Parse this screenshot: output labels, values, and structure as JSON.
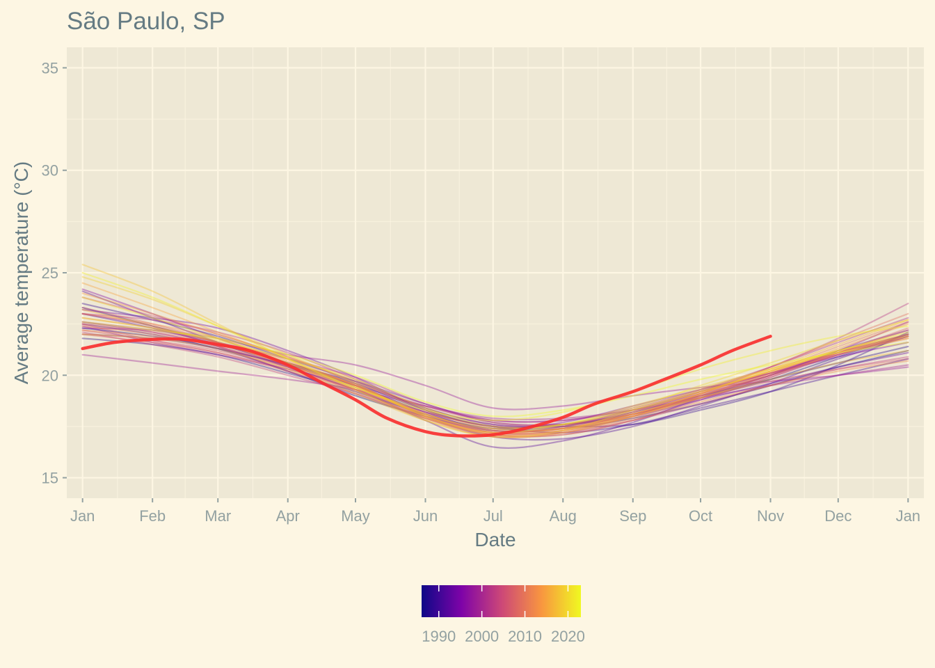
{
  "chart_data": {
    "type": "line",
    "title": "São Paulo, SP",
    "xlabel": "Date",
    "ylabel": "Average temperature (°C)",
    "ylim": [
      14,
      36
    ],
    "yticks": [
      15,
      20,
      25,
      30,
      35
    ],
    "xlim": [
      "2023-12-25",
      "2025-01-08"
    ],
    "xticks": [
      {
        "label": "Jan",
        "date": "2024-01-01"
      },
      {
        "label": "Feb",
        "date": "2024-02-01"
      },
      {
        "label": "Mar",
        "date": "2024-03-01"
      },
      {
        "label": "Apr",
        "date": "2024-04-01"
      },
      {
        "label": "May",
        "date": "2024-05-01"
      },
      {
        "label": "Jun",
        "date": "2024-06-01"
      },
      {
        "label": "Jul",
        "date": "2024-07-01"
      },
      {
        "label": "Aug",
        "date": "2024-08-01"
      },
      {
        "label": "Sep",
        "date": "2024-09-01"
      },
      {
        "label": "Oct",
        "date": "2024-10-01"
      },
      {
        "label": "Nov",
        "date": "2024-11-01"
      },
      {
        "label": "Dec",
        "date": "2024-12-01"
      },
      {
        "label": "Jan",
        "date": "2025-01-01"
      }
    ],
    "grid": true,
    "legend": {
      "position": "bottom",
      "type": "colorbar",
      "palette": [
        "#0d0887",
        "#7e03a8",
        "#cc4778",
        "#f89540",
        "#f0f921"
      ],
      "range": [
        1986,
        2023
      ],
      "ticks": [
        1990,
        2000,
        2010,
        2020
      ]
    },
    "background_series": {
      "color_by": "year",
      "opacity": 0.38,
      "x": [
        "2024-01-01",
        "2024-02-01",
        "2024-03-01",
        "2024-04-01",
        "2024-05-01",
        "2024-06-01",
        "2024-07-01",
        "2024-08-01",
        "2024-09-01",
        "2024-10-01",
        "2024-11-01",
        "2024-12-01",
        "2025-01-01"
      ],
      "series": [
        {
          "year": 1986,
          "values": [
            22.3,
            21.9,
            21.3,
            20.2,
            19.0,
            18.0,
            17.3,
            17.4,
            17.9,
            18.6,
            19.5,
            20.4,
            21.2
          ]
        },
        {
          "year": 1987,
          "values": [
            23.3,
            22.4,
            21.6,
            20.6,
            19.6,
            18.3,
            17.5,
            17.6,
            18.1,
            18.9,
            19.8,
            20.9,
            22.0
          ]
        },
        {
          "year": 1988,
          "values": [
            21.8,
            21.5,
            21.0,
            20.1,
            19.2,
            18.1,
            17.4,
            17.5,
            18.2,
            19.0,
            19.8,
            20.6,
            21.4
          ]
        },
        {
          "year": 1989,
          "values": [
            23.5,
            22.7,
            21.9,
            20.8,
            19.7,
            18.4,
            17.6,
            17.5,
            17.6,
            18.3,
            19.2,
            20.5,
            22.1
          ]
        },
        {
          "year": 1990,
          "values": [
            22.5,
            22.0,
            21.3,
            20.5,
            19.5,
            18.2,
            17.5,
            17.2,
            17.6,
            18.4,
            19.2,
            20.0,
            20.8
          ]
        },
        {
          "year": 1991,
          "values": [
            23.0,
            22.3,
            21.5,
            20.6,
            19.5,
            18.0,
            17.0,
            16.9,
            17.5,
            18.5,
            19.6,
            20.8,
            21.9
          ]
        },
        {
          "year": 1992,
          "values": [
            24.1,
            22.8,
            21.6,
            20.4,
            19.3,
            17.8,
            16.5,
            16.8,
            17.7,
            18.9,
            20.0,
            21.2,
            22.2
          ]
        },
        {
          "year": 1993,
          "values": [
            22.0,
            21.8,
            21.3,
            20.5,
            19.7,
            18.6,
            17.7,
            17.6,
            18.0,
            18.8,
            19.6,
            20.4,
            21.1
          ]
        },
        {
          "year": 1994,
          "values": [
            23.2,
            22.8,
            22.3,
            21.2,
            19.9,
            18.3,
            17.5,
            17.6,
            18.3,
            19.2,
            20.1,
            21.1,
            22.0
          ]
        },
        {
          "year": 1995,
          "values": [
            22.6,
            22.1,
            21.4,
            20.4,
            19.3,
            18.1,
            17.4,
            17.7,
            18.5,
            19.3,
            20.1,
            20.9,
            21.6
          ]
        },
        {
          "year": 1996,
          "values": [
            24.2,
            23.0,
            21.8,
            20.6,
            19.5,
            18.2,
            17.3,
            17.4,
            18.1,
            19.0,
            20.0,
            21.0,
            21.9
          ]
        },
        {
          "year": 1997,
          "values": [
            22.4,
            21.6,
            21.0,
            20.3,
            19.5,
            18.5,
            17.8,
            17.8,
            18.3,
            19.1,
            20.0,
            21.2,
            22.6
          ]
        },
        {
          "year": 1998,
          "values": [
            22.3,
            22.2,
            21.8,
            21.0,
            20.5,
            19.5,
            18.4,
            18.5,
            19.0,
            19.4,
            19.7,
            20.0,
            20.4
          ]
        },
        {
          "year": 1999,
          "values": [
            21.0,
            20.6,
            20.2,
            19.8,
            19.3,
            18.5,
            17.9,
            17.9,
            18.3,
            18.9,
            19.5,
            20.0,
            20.5
          ]
        },
        {
          "year": 2000,
          "values": [
            23.0,
            22.4,
            21.4,
            20.2,
            19.1,
            17.9,
            17.1,
            17.1,
            17.8,
            18.8,
            19.9,
            21.0,
            22.0
          ]
        },
        {
          "year": 2001,
          "values": [
            22.6,
            22.2,
            21.6,
            20.8,
            19.9,
            18.6,
            17.8,
            17.8,
            18.4,
            19.3,
            20.4,
            21.6,
            22.8
          ]
        },
        {
          "year": 2002,
          "values": [
            23.0,
            22.7,
            22.1,
            21.1,
            19.8,
            18.4,
            17.6,
            17.6,
            18.2,
            19.2,
            20.4,
            21.8,
            23.5
          ]
        },
        {
          "year": 2003,
          "values": [
            22.1,
            21.5,
            20.9,
            20.0,
            19.1,
            18.0,
            17.2,
            17.2,
            17.8,
            18.6,
            19.5,
            20.3,
            20.9
          ]
        },
        {
          "year": 2004,
          "values": [
            22.5,
            21.7,
            21.1,
            20.3,
            19.3,
            17.9,
            17.0,
            17.2,
            18.0,
            19.0,
            20.1,
            21.1,
            22.0
          ]
        },
        {
          "year": 2005,
          "values": [
            23.8,
            22.9,
            22.0,
            20.9,
            19.6,
            18.0,
            17.2,
            17.5,
            18.3,
            19.2,
            20.1,
            21.0,
            21.9
          ]
        },
        {
          "year": 2006,
          "values": [
            22.2,
            21.7,
            21.2,
            20.4,
            19.6,
            18.5,
            17.7,
            17.6,
            18.1,
            18.9,
            19.7,
            20.3,
            20.8
          ]
        },
        {
          "year": 2007,
          "values": [
            23.3,
            22.5,
            21.6,
            20.5,
            19.4,
            18.1,
            17.2,
            17.3,
            18.0,
            18.9,
            19.9,
            21.1,
            22.3
          ]
        },
        {
          "year": 2008,
          "values": [
            22.0,
            21.6,
            21.1,
            20.2,
            19.3,
            18.2,
            17.5,
            17.5,
            18.1,
            19.0,
            20.0,
            21.1,
            22.2
          ]
        },
        {
          "year": 2009,
          "values": [
            22.5,
            22.1,
            21.5,
            20.5,
            19.4,
            18.0,
            17.2,
            17.3,
            18.0,
            19.1,
            20.4,
            21.7,
            23.0
          ]
        },
        {
          "year": 2010,
          "values": [
            22.8,
            22.3,
            21.6,
            20.6,
            19.5,
            18.1,
            17.3,
            17.4,
            18.1,
            19.1,
            20.2,
            21.4,
            22.6
          ]
        },
        {
          "year": 2011,
          "values": [
            22.4,
            22.0,
            21.4,
            20.4,
            19.2,
            17.9,
            17.1,
            17.2,
            17.9,
            18.9,
            20.0,
            21.0,
            21.8
          ]
        },
        {
          "year": 2012,
          "values": [
            22.2,
            21.9,
            21.5,
            20.6,
            19.5,
            18.0,
            17.1,
            17.1,
            17.8,
            18.7,
            19.5,
            20.2,
            20.7
          ]
        },
        {
          "year": 2013,
          "values": [
            23.0,
            22.5,
            21.8,
            20.7,
            19.5,
            18.1,
            17.3,
            17.4,
            18.1,
            19.1,
            20.2,
            21.1,
            21.9
          ]
        },
        {
          "year": 2014,
          "values": [
            24.0,
            23.0,
            22.0,
            20.9,
            19.7,
            18.3,
            17.4,
            17.4,
            18.0,
            19.0,
            20.1,
            21.3,
            22.5
          ]
        },
        {
          "year": 2015,
          "values": [
            24.5,
            23.3,
            22.1,
            20.8,
            19.5,
            18.0,
            17.2,
            17.4,
            18.2,
            19.2,
            20.2,
            21.1,
            21.8
          ]
        },
        {
          "year": 2016,
          "values": [
            23.2,
            22.4,
            21.6,
            20.5,
            19.3,
            17.9,
            17.1,
            17.3,
            18.1,
            19.1,
            20.3,
            21.5,
            22.7
          ]
        },
        {
          "year": 2017,
          "values": [
            22.0,
            21.8,
            21.3,
            20.3,
            19.1,
            17.8,
            17.0,
            17.2,
            18.0,
            18.9,
            19.8,
            20.6,
            21.2
          ]
        },
        {
          "year": 2018,
          "values": [
            25.4,
            24.1,
            22.5,
            20.8,
            19.3,
            17.8,
            17.0,
            17.3,
            18.3,
            19.3,
            20.3,
            21.2,
            21.9
          ]
        },
        {
          "year": 2019,
          "values": [
            24.8,
            23.7,
            22.4,
            21.0,
            19.6,
            18.0,
            17.2,
            17.6,
            18.5,
            19.4,
            20.3,
            21.2,
            22.0
          ]
        },
        {
          "year": 2020,
          "values": [
            22.8,
            22.3,
            21.7,
            20.8,
            19.8,
            18.4,
            17.5,
            17.6,
            18.4,
            19.5,
            20.6,
            21.7,
            22.7
          ]
        },
        {
          "year": 2021,
          "values": [
            23.8,
            22.8,
            21.8,
            20.6,
            19.4,
            18.1,
            17.4,
            17.6,
            18.3,
            19.2,
            20.2,
            21.2,
            22.1
          ]
        },
        {
          "year": 2022,
          "values": [
            25.0,
            23.8,
            22.4,
            20.8,
            19.4,
            18.3,
            17.8,
            18.2,
            19.2,
            20.3,
            21.2,
            21.9,
            22.4
          ]
        },
        {
          "year": 2023,
          "values": [
            22.6,
            22.2,
            21.8,
            21.0,
            20.0,
            18.7,
            18.0,
            18.3,
            19.0,
            19.8,
            20.5,
            21.1,
            21.6
          ]
        }
      ]
    },
    "highlight_series": {
      "color": "#f83030",
      "x": [
        "2024-01-01",
        "2024-01-15",
        "2024-02-01",
        "2024-02-15",
        "2024-03-01",
        "2024-03-15",
        "2024-04-01",
        "2024-04-15",
        "2024-05-01",
        "2024-05-15",
        "2024-06-01",
        "2024-06-15",
        "2024-07-01",
        "2024-07-15",
        "2024-08-01",
        "2024-08-15",
        "2024-09-01",
        "2024-09-15",
        "2024-10-01",
        "2024-10-15",
        "2024-11-01"
      ],
      "values": [
        21.3,
        21.6,
        21.75,
        21.75,
        21.5,
        21.2,
        20.5,
        19.7,
        18.8,
        17.9,
        17.25,
        17.05,
        17.1,
        17.4,
        17.95,
        18.6,
        19.2,
        19.8,
        20.5,
        21.2,
        21.9
      ]
    }
  }
}
